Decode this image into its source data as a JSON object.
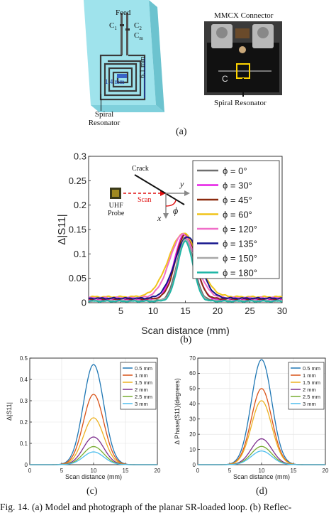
{
  "figure": {
    "caption": "Fig. 14.   (a) Model and photograph of the planar SR-loaded loop. (b) Reflec-",
    "panel_a": {
      "label": "(a)",
      "model": {
        "feed_label": "Feed",
        "c1_label": "C",
        "c1_sub": "1",
        "c2_label": "C",
        "c2_sub": "2",
        "cm_label": "C",
        "cm_sub": "m",
        "dim_width": "1.4 mm",
        "dim_height": "6.1 mm",
        "spiral_label_line1": "Spiral",
        "spiral_label_line2": "Resonator"
      },
      "photo": {
        "connector_label": "MMCX Connector",
        "board_letter": "C",
        "spiral_label": "Spiral Resonator"
      }
    },
    "panel_b": {
      "label": "(b)",
      "inset": {
        "crack": "Crack",
        "scan": "Scan",
        "probe_line1": "UHF",
        "probe_line2": "Probe",
        "x_axis": "x",
        "y_axis": "y",
        "angle": "ϕ"
      }
    },
    "panel_c": {
      "label": "(c)"
    },
    "panel_d": {
      "label": "(d)"
    }
  },
  "chart_data": [
    {
      "type": "line",
      "panel": "b",
      "xlabel": "Scan distance (mm)",
      "ylabel": "Δ|S11|",
      "xlim": [
        0,
        30
      ],
      "ylim": [
        0,
        0.3
      ],
      "xticks": [
        5,
        10,
        15,
        20,
        25,
        30
      ],
      "yticks": [
        0,
        0.05,
        0.1,
        0.15,
        0.2,
        0.25,
        0.3
      ],
      "xtick_labels": [
        "5",
        "10",
        "15",
        "20",
        "25",
        "30"
      ],
      "ytick_labels": [
        "0",
        "0.05",
        "0.1",
        "0.15",
        "0.2",
        "0.25",
        "0.3"
      ],
      "grid": false,
      "legend_position": "top-right",
      "series": [
        {
          "name": "ϕ = 0°",
          "color": "#6e6e6e",
          "center": 15.0,
          "peak": 0.133,
          "width": 1.3,
          "baseline": 0.004
        },
        {
          "name": "ϕ = 30°",
          "color": "#e61ee6",
          "center": 14.9,
          "peak": 0.14,
          "width": 1.6,
          "baseline": 0.006
        },
        {
          "name": "ϕ = 45°",
          "color": "#8b2a0e",
          "center": 15.0,
          "peak": 0.141,
          "width": 1.5,
          "baseline": 0.008
        },
        {
          "name": "ϕ = 60°",
          "color": "#f0c419",
          "center": 14.7,
          "peak": 0.142,
          "width": 2.3,
          "baseline": 0.012
        },
        {
          "name": "ϕ = 120°",
          "color": "#f06ec8",
          "center": 14.6,
          "peak": 0.14,
          "width": 2.0,
          "baseline": 0.01
        },
        {
          "name": "ϕ = 135°",
          "color": "#14148c",
          "center": 15.3,
          "peak": 0.135,
          "width": 1.9,
          "baseline": 0.009
        },
        {
          "name": "ϕ = 150°",
          "color": "#a8a8a8",
          "center": 15.0,
          "peak": 0.13,
          "width": 1.2,
          "baseline": 0.004
        },
        {
          "name": "ϕ = 180°",
          "color": "#1fb6a6",
          "center": 15.0,
          "peak": 0.125,
          "width": 1.2,
          "baseline": 0.003
        }
      ]
    },
    {
      "type": "line",
      "panel": "c",
      "xlabel": "Scan distance (mm)",
      "ylabel": "Δ|S11|",
      "xlim": [
        0,
        20
      ],
      "ylim": [
        0,
        0.5
      ],
      "xticks": [
        0,
        5,
        10,
        15,
        20
      ],
      "yticks": [
        0,
        0.1,
        0.2,
        0.3,
        0.4,
        0.5
      ],
      "xtick_labels": [
        "0",
        "5",
        "10",
        "15",
        "20"
      ],
      "ytick_labels": [
        "0",
        "0.1",
        "0.2",
        "0.3",
        "0.4",
        "0.5"
      ],
      "grid": true,
      "legend_position": "top-right",
      "series": [
        {
          "name": "0.5 mm",
          "color": "#1f77b4",
          "center": 10,
          "peak": 0.47,
          "width": 1.6
        },
        {
          "name": "1 mm",
          "color": "#d95319",
          "center": 10,
          "peak": 0.33,
          "width": 1.6
        },
        {
          "name": "1.5 mm",
          "color": "#edb120",
          "center": 10,
          "peak": 0.22,
          "width": 1.6
        },
        {
          "name": "2 mm",
          "color": "#7e2f8e",
          "center": 10,
          "peak": 0.13,
          "width": 1.6
        },
        {
          "name": "2.5 mm",
          "color": "#77ac30",
          "center": 10,
          "peak": 0.085,
          "width": 1.6
        },
        {
          "name": "3 mm",
          "color": "#4dbeee",
          "center": 10,
          "peak": 0.06,
          "width": 1.6
        }
      ]
    },
    {
      "type": "line",
      "panel": "d",
      "xlabel": "Scan distance (mm)",
      "ylabel": "Δ Phase(S11)(degrees)",
      "xlim": [
        0,
        20
      ],
      "ylim": [
        0,
        70
      ],
      "xticks": [
        0,
        5,
        10,
        15,
        20
      ],
      "yticks": [
        0,
        10,
        20,
        30,
        40,
        50,
        60,
        70
      ],
      "xtick_labels": [
        "0",
        "5",
        "10",
        "15",
        "20"
      ],
      "ytick_labels": [
        "0",
        "10",
        "20",
        "30",
        "40",
        "50",
        "60",
        "70"
      ],
      "grid": true,
      "legend_position": "top-right",
      "series": [
        {
          "name": "0.5 mm",
          "color": "#1f77b4",
          "center": 10,
          "peak": 69,
          "width": 1.6
        },
        {
          "name": "1 mm",
          "color": "#d95319",
          "center": 10,
          "peak": 50,
          "width": 1.6
        },
        {
          "name": "1.5 mm",
          "color": "#edb120",
          "center": 10,
          "peak": 42,
          "width": 1.6
        },
        {
          "name": "2 mm",
          "color": "#7e2f8e",
          "center": 10,
          "peak": 17,
          "width": 1.6
        },
        {
          "name": "2.5 mm",
          "color": "#77ac30",
          "center": 10,
          "peak": 12,
          "width": 1.6
        },
        {
          "name": "3 mm",
          "color": "#4dbeee",
          "center": 10,
          "peak": 9,
          "width": 1.6
        }
      ]
    }
  ]
}
